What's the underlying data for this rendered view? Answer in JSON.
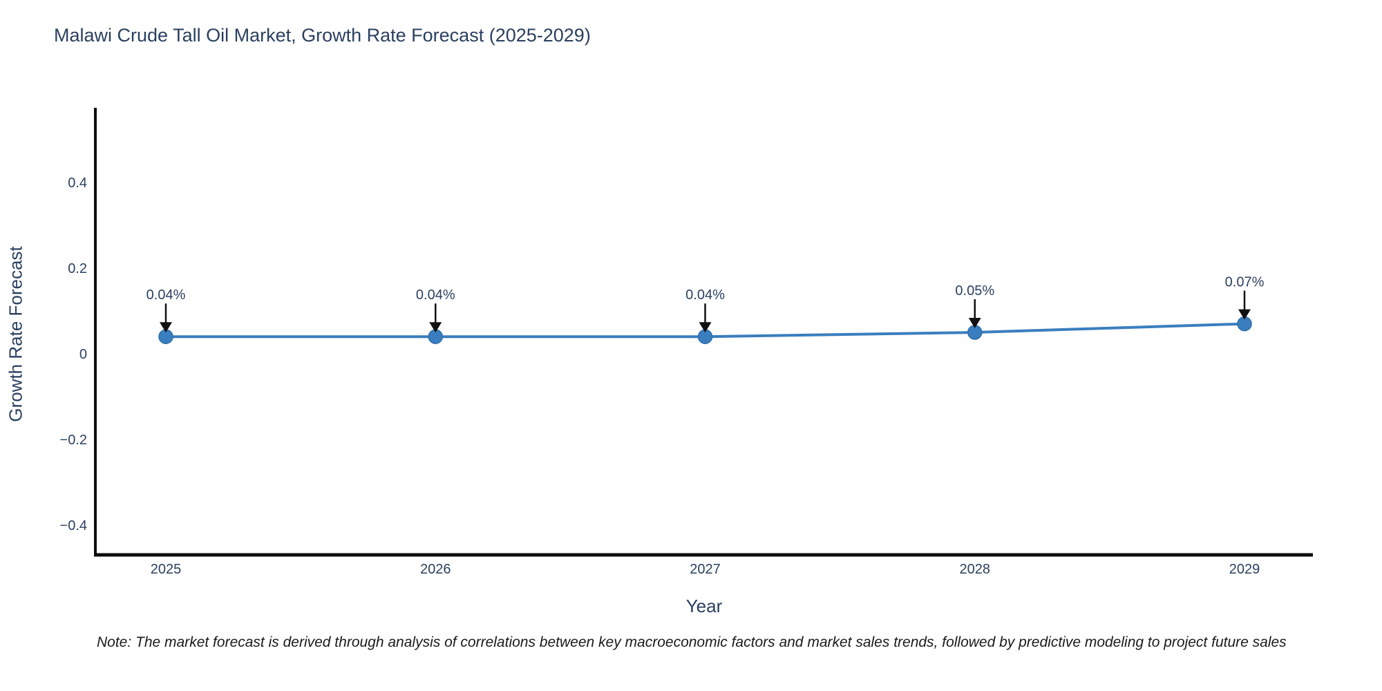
{
  "title": "Malawi Crude Tall Oil Market, Growth Rate Forecast (2025-2029)",
  "note": "Note: The market forecast is derived through analysis of correlations between key macroeconomic factors and market sales trends, followed by predictive modeling to project future sales",
  "colors": {
    "line": "#3a7ebf",
    "marker_fill": "#3a7ebf",
    "marker_stroke": "#2f6da8",
    "chart_text": "#2a3f5f",
    "axis_line": "#0d0d0d",
    "arrow": "#111111",
    "note_text": "#1a1a1a",
    "background": "#ffffff"
  },
  "chart_data": {
    "type": "line",
    "title": "Malawi Crude Tall Oil Market, Growth Rate Forecast (2025-2029)",
    "xlabel": "Year",
    "ylabel": "Growth Rate Forecast",
    "x": [
      2025,
      2026,
      2027,
      2028,
      2029
    ],
    "y": [
      0.04,
      0.04,
      0.04,
      0.05,
      0.07
    ],
    "point_labels": [
      "0.04%",
      "0.04%",
      "0.04%",
      "0.05%",
      "0.07%"
    ],
    "x_tick_labels": [
      "2025",
      "2026",
      "2027",
      "2028",
      "2029"
    ],
    "y_ticks": [
      0.4,
      0.2,
      0,
      -0.2,
      -0.4
    ],
    "y_tick_labels": [
      "0.4",
      "0.2",
      "0",
      "−0.2",
      "−0.4"
    ],
    "xlim": [
      2024.74,
      2029.25
    ],
    "ylim": [
      -0.47,
      0.57
    ],
    "grid": false,
    "legend": "none",
    "marker_style": "circle",
    "annotation_arrows": true
  }
}
